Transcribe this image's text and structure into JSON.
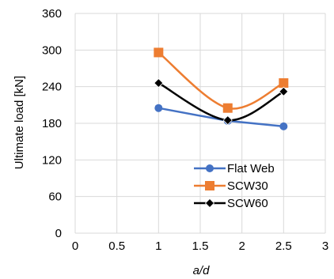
{
  "chart_data": {
    "type": "line",
    "xlabel": "a/d",
    "ylabel": "Ultimate load [kN]",
    "xlim": [
      0,
      3
    ],
    "ylim": [
      0,
      360
    ],
    "xticks": [
      0,
      0.5,
      1,
      1.5,
      2,
      2.5,
      3
    ],
    "xtick_labels": [
      "0",
      "0.5",
      "1",
      "1.5",
      "2",
      "2.5",
      "3"
    ],
    "yticks": [
      0,
      60,
      120,
      180,
      240,
      300,
      360
    ],
    "ytick_labels": [
      "0",
      "60",
      "120",
      "180",
      "240",
      "300",
      "360"
    ],
    "grid": true,
    "legend_position": "bottom-right",
    "series": [
      {
        "name": "Flat Web",
        "color": "#4472C4",
        "marker": "circle",
        "smooth": false,
        "x": [
          1,
          1.83,
          2.5
        ],
        "y": [
          205,
          184,
          175
        ]
      },
      {
        "name": "SCW30",
        "color": "#ED7D31",
        "marker": "square",
        "smooth": true,
        "x": [
          1,
          1.83,
          2.5
        ],
        "y": [
          296,
          205,
          246
        ]
      },
      {
        "name": "SCW60",
        "color": "#000000",
        "marker": "diamond",
        "smooth": true,
        "x": [
          1,
          1.83,
          2.5
        ],
        "y": [
          246,
          185,
          232
        ]
      }
    ]
  }
}
